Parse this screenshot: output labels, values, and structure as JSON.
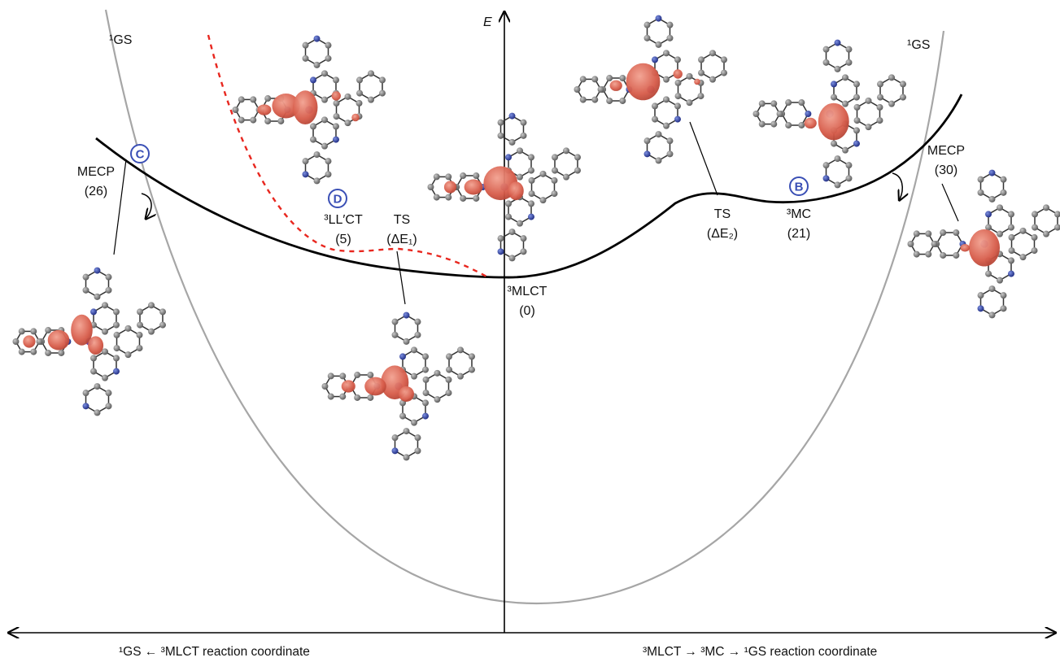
{
  "axes": {
    "energy": "E",
    "left_title": "¹GS ← ³MLCT reaction coordinate",
    "right_title": "³MLCT → ³MC → ¹GS reaction coordinate"
  },
  "curves": {
    "gs_left": "¹GS",
    "gs_right": "¹GS"
  },
  "states": {
    "mecp_left": {
      "name": "MECP",
      "value": "(26)"
    },
    "llct": {
      "name": "³LL′CT",
      "value": "(5)"
    },
    "ts1": {
      "name": "TS",
      "value": "(ΔE₁)"
    },
    "mlct": {
      "name": "³MLCT",
      "value": "(0)"
    },
    "ts2": {
      "name": "TS",
      "value": "(ΔE₂)"
    },
    "mc": {
      "name": "³MC",
      "value": "(21)"
    },
    "mecp_right": {
      "name": "MECP",
      "value": "(30)"
    }
  },
  "badges": {
    "c": "C",
    "d": "D",
    "b": "B"
  },
  "colors": {
    "triplet_curve": "#000000",
    "ground_curve": "#a6a6a6",
    "llct_curve": "#e8271f",
    "badge": "#3a4fb5",
    "spin_density": "#d9604f",
    "carbon": "#7a7a7a",
    "nitrogen": "#2a3fa0"
  }
}
